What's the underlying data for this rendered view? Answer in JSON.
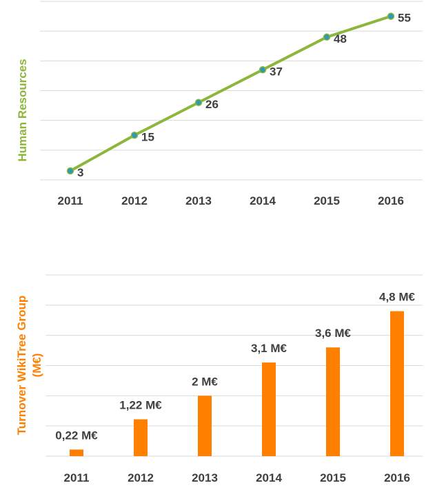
{
  "chart_data": [
    {
      "type": "line",
      "categories": [
        "2011",
        "2012",
        "2013",
        "2014",
        "2015",
        "2016"
      ],
      "series": [
        {
          "values": [
            3,
            15,
            26,
            37,
            48,
            55
          ],
          "data_labels": [
            "3",
            "15",
            "26",
            "37",
            "48",
            "55"
          ]
        }
      ],
      "ylabel": "Human Resources",
      "ylim": [
        0,
        60
      ],
      "grid": true,
      "colors": {
        "line": "#8db63c",
        "marker": "#2e9bb0",
        "label": "#8db63c"
      }
    },
    {
      "type": "bar",
      "categories": [
        "2011",
        "2012",
        "2013",
        "2014",
        "2015",
        "2016"
      ],
      "series": [
        {
          "values": [
            0.22,
            1.22,
            2,
            3.1,
            3.6,
            4.8
          ],
          "data_labels": [
            "0,22 M€",
            "1,22 M€",
            "2 M€",
            "3,1 M€",
            "3,6 M€",
            "4,8 M€"
          ]
        }
      ],
      "ylabel": [
        "Turnover WikiTree Group",
        "(M€)"
      ],
      "ylim": [
        0,
        6
      ],
      "grid": true,
      "colors": {
        "bar": "#ff8000",
        "label": "#ff8000"
      }
    }
  ]
}
